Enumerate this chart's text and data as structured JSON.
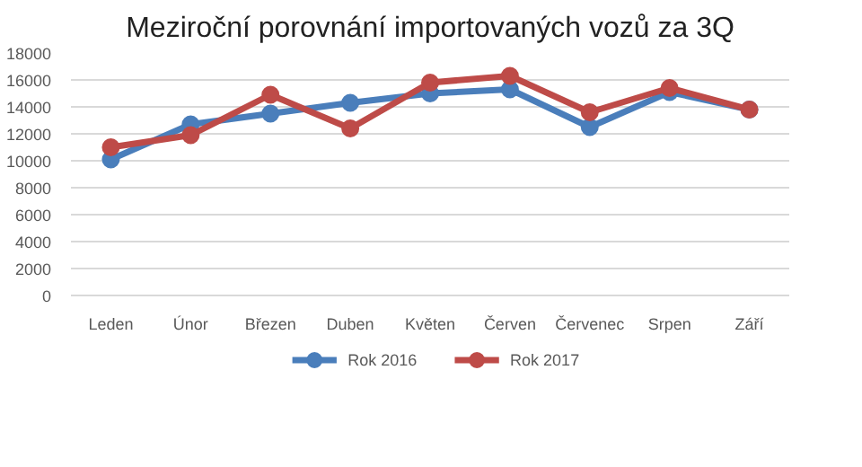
{
  "chart_data": {
    "type": "line",
    "title": "Meziroční porovnání importovaných vozů za 3Q",
    "categories": [
      "Leden",
      "Únor",
      "Březen",
      "Duben",
      "Květen",
      "Červen",
      "Červenec",
      "Srpen",
      "Září"
    ],
    "series": [
      {
        "name": "Rok 2016",
        "color": "#4a7ebb",
        "values": [
          10100,
          12700,
          13500,
          14300,
          15000,
          15300,
          12500,
          15100,
          13800
        ]
      },
      {
        "name": "Rok 2017",
        "color": "#be4b48",
        "values": [
          11000,
          11900,
          14900,
          12400,
          15800,
          16300,
          13600,
          15400,
          13800
        ]
      }
    ],
    "ylim": [
      0,
      18000
    ],
    "yticks": [
      0,
      2000,
      4000,
      6000,
      8000,
      10000,
      12000,
      14000,
      16000,
      18000
    ],
    "grid": "y",
    "legend": "bottom",
    "marker": "circle",
    "line_style": "solid"
  }
}
